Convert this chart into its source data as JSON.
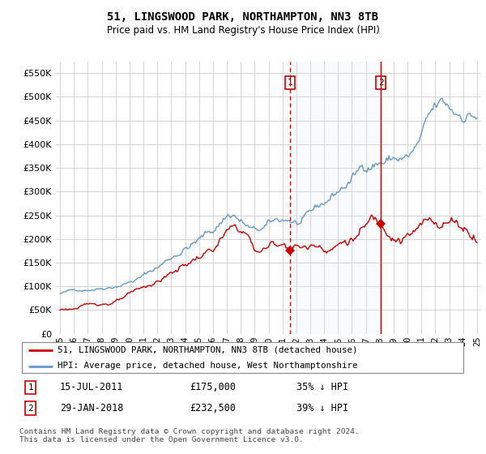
{
  "title": "51, LINGSWOOD PARK, NORTHAMPTON, NN3 8TB",
  "subtitle": "Price paid vs. HM Land Registry's House Price Index (HPI)",
  "hpi_label": "HPI: Average price, detached house, West Northamptonshire",
  "property_label": "51, LINGSWOOD PARK, NORTHAMPTON, NN3 8TB (detached house)",
  "sale1": {
    "date": "15-JUL-2011",
    "price": 175000,
    "hpi_diff": "35% ↓ HPI",
    "label": "1",
    "x": 2011.54
  },
  "sale2": {
    "date": "29-JAN-2018",
    "price": 232500,
    "hpi_diff": "39% ↓ HPI",
    "label": "2",
    "x": 2018.08
  },
  "footnote": "Contains HM Land Registry data © Crown copyright and database right 2024.\nThis data is licensed under the Open Government Licence v3.0.",
  "hpi_color": "#6699cc",
  "property_color": "#cc0000",
  "vline_color": "#cc0000",
  "shade_color": "#dce6f1",
  "ylim": [
    0,
    575000
  ],
  "xlim_start": 1994.7,
  "xlim_end": 2025.3
}
